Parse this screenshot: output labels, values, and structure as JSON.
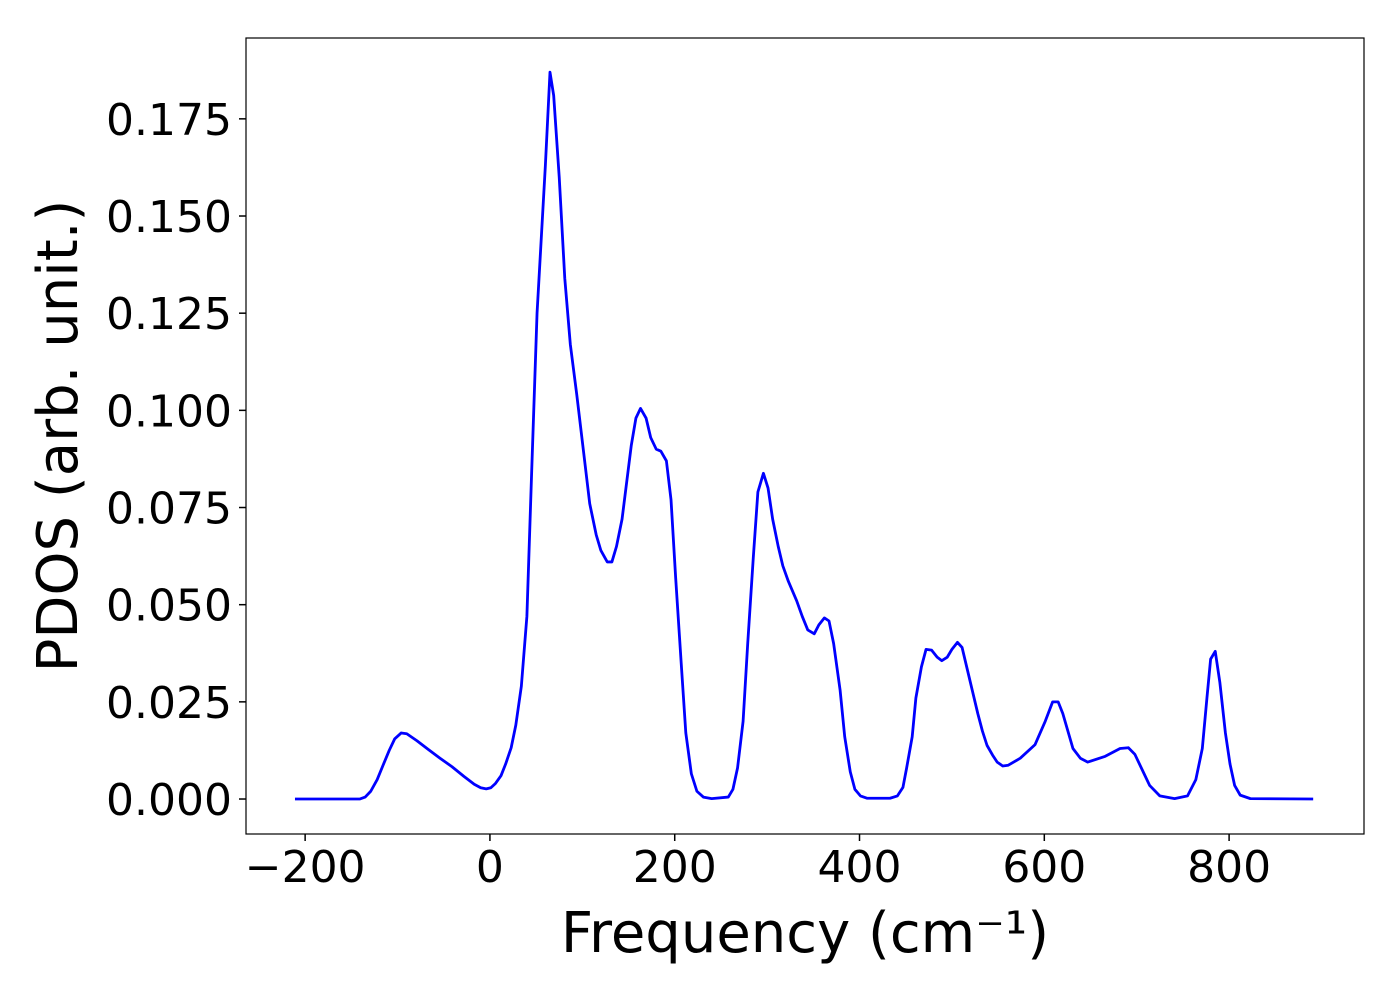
{
  "chart_data": {
    "type": "line",
    "xlabel": "Frequency (cm⁻¹)",
    "ylabel": "PDOS (arb. unit.)",
    "color": "#0000ff",
    "x": [
      -211,
      -141,
      -135,
      -129,
      -122,
      -116,
      -109,
      -103,
      -96,
      -90,
      -79,
      -67,
      -54,
      -41,
      -28,
      -17,
      -10,
      -4,
      1,
      6,
      12,
      17,
      23,
      28,
      34,
      40,
      45,
      51,
      60,
      65,
      69,
      75,
      81,
      87,
      94,
      101,
      108,
      115,
      120,
      127,
      132,
      137,
      143,
      153,
      158,
      163,
      169,
      174,
      180,
      185,
      191,
      196,
      201,
      207,
      212,
      218,
      224,
      231,
      240,
      258,
      263,
      268,
      274,
      279,
      285,
      290,
      296,
      301,
      306,
      312,
      317,
      323,
      332,
      338,
      344,
      351,
      356,
      362,
      367,
      372,
      379,
      384,
      390,
      395,
      401,
      408,
      433,
      441,
      447,
      451,
      457,
      461,
      467,
      472,
      478,
      484,
      489,
      495,
      500,
      506,
      511,
      516,
      522,
      528,
      533,
      538,
      544,
      549,
      555,
      561,
      574,
      590,
      601,
      609,
      615,
      620,
      631,
      639,
      647,
      666,
      682,
      691,
      698,
      706,
      714,
      725,
      741,
      755,
      764,
      771,
      776,
      780,
      785,
      790,
      796,
      801,
      806,
      812,
      823,
      891
    ],
    "values": [
      0,
      0,
      0.0005,
      0.002,
      0.005,
      0.0085,
      0.0125,
      0.0155,
      0.017,
      0.0168,
      0.015,
      0.0128,
      0.0105,
      0.0083,
      0.0058,
      0.0038,
      0.0029,
      0.0026,
      0.0029,
      0.004,
      0.006,
      0.009,
      0.0132,
      0.019,
      0.029,
      0.047,
      0.083,
      0.125,
      0.163,
      0.187,
      0.181,
      0.16,
      0.134,
      0.117,
      0.104,
      0.09,
      0.076,
      0.068,
      0.064,
      0.061,
      0.061,
      0.065,
      0.072,
      0.091,
      0.098,
      0.1005,
      0.098,
      0.093,
      0.09,
      0.0895,
      0.087,
      0.077,
      0.057,
      0.035,
      0.017,
      0.0065,
      0.002,
      0.0005,
      0.0001,
      0.0005,
      0.0025,
      0.008,
      0.02,
      0.04,
      0.062,
      0.079,
      0.0838,
      0.08,
      0.072,
      0.065,
      0.06,
      0.056,
      0.051,
      0.047,
      0.0435,
      0.0425,
      0.0448,
      0.0466,
      0.0458,
      0.04,
      0.028,
      0.016,
      0.007,
      0.0025,
      0.0008,
      0.0002,
      0.0002,
      0.0008,
      0.003,
      0.008,
      0.016,
      0.026,
      0.034,
      0.0385,
      0.0383,
      0.0365,
      0.0356,
      0.0365,
      0.0385,
      0.0403,
      0.039,
      0.034,
      0.028,
      0.022,
      0.0175,
      0.0138,
      0.0113,
      0.0095,
      0.0085,
      0.0087,
      0.0105,
      0.014,
      0.02,
      0.025,
      0.025,
      0.022,
      0.013,
      0.0105,
      0.0095,
      0.011,
      0.013,
      0.0132,
      0.0115,
      0.0075,
      0.0035,
      0.0008,
      0.0001,
      0.0008,
      0.005,
      0.013,
      0.026,
      0.036,
      0.038,
      0.03,
      0.017,
      0.009,
      0.0035,
      0.001,
      0.0001,
      0
    ],
    "xlim": [
      -264,
      946
    ],
    "ylim": [
      -0.009,
      0.1958
    ],
    "xticks": [
      {
        "value": -200,
        "label": "−200"
      },
      0,
      200,
      400,
      600,
      800
    ],
    "yticks": [
      {
        "value": 0,
        "label": "0.000"
      },
      0.025,
      {
        "value": 0.05,
        "label": "0.050"
      },
      0.075,
      {
        "value": 0.1,
        "label": "0.100"
      },
      0.125,
      {
        "value": 0.15,
        "label": "0.150"
      },
      0.175
    ]
  }
}
